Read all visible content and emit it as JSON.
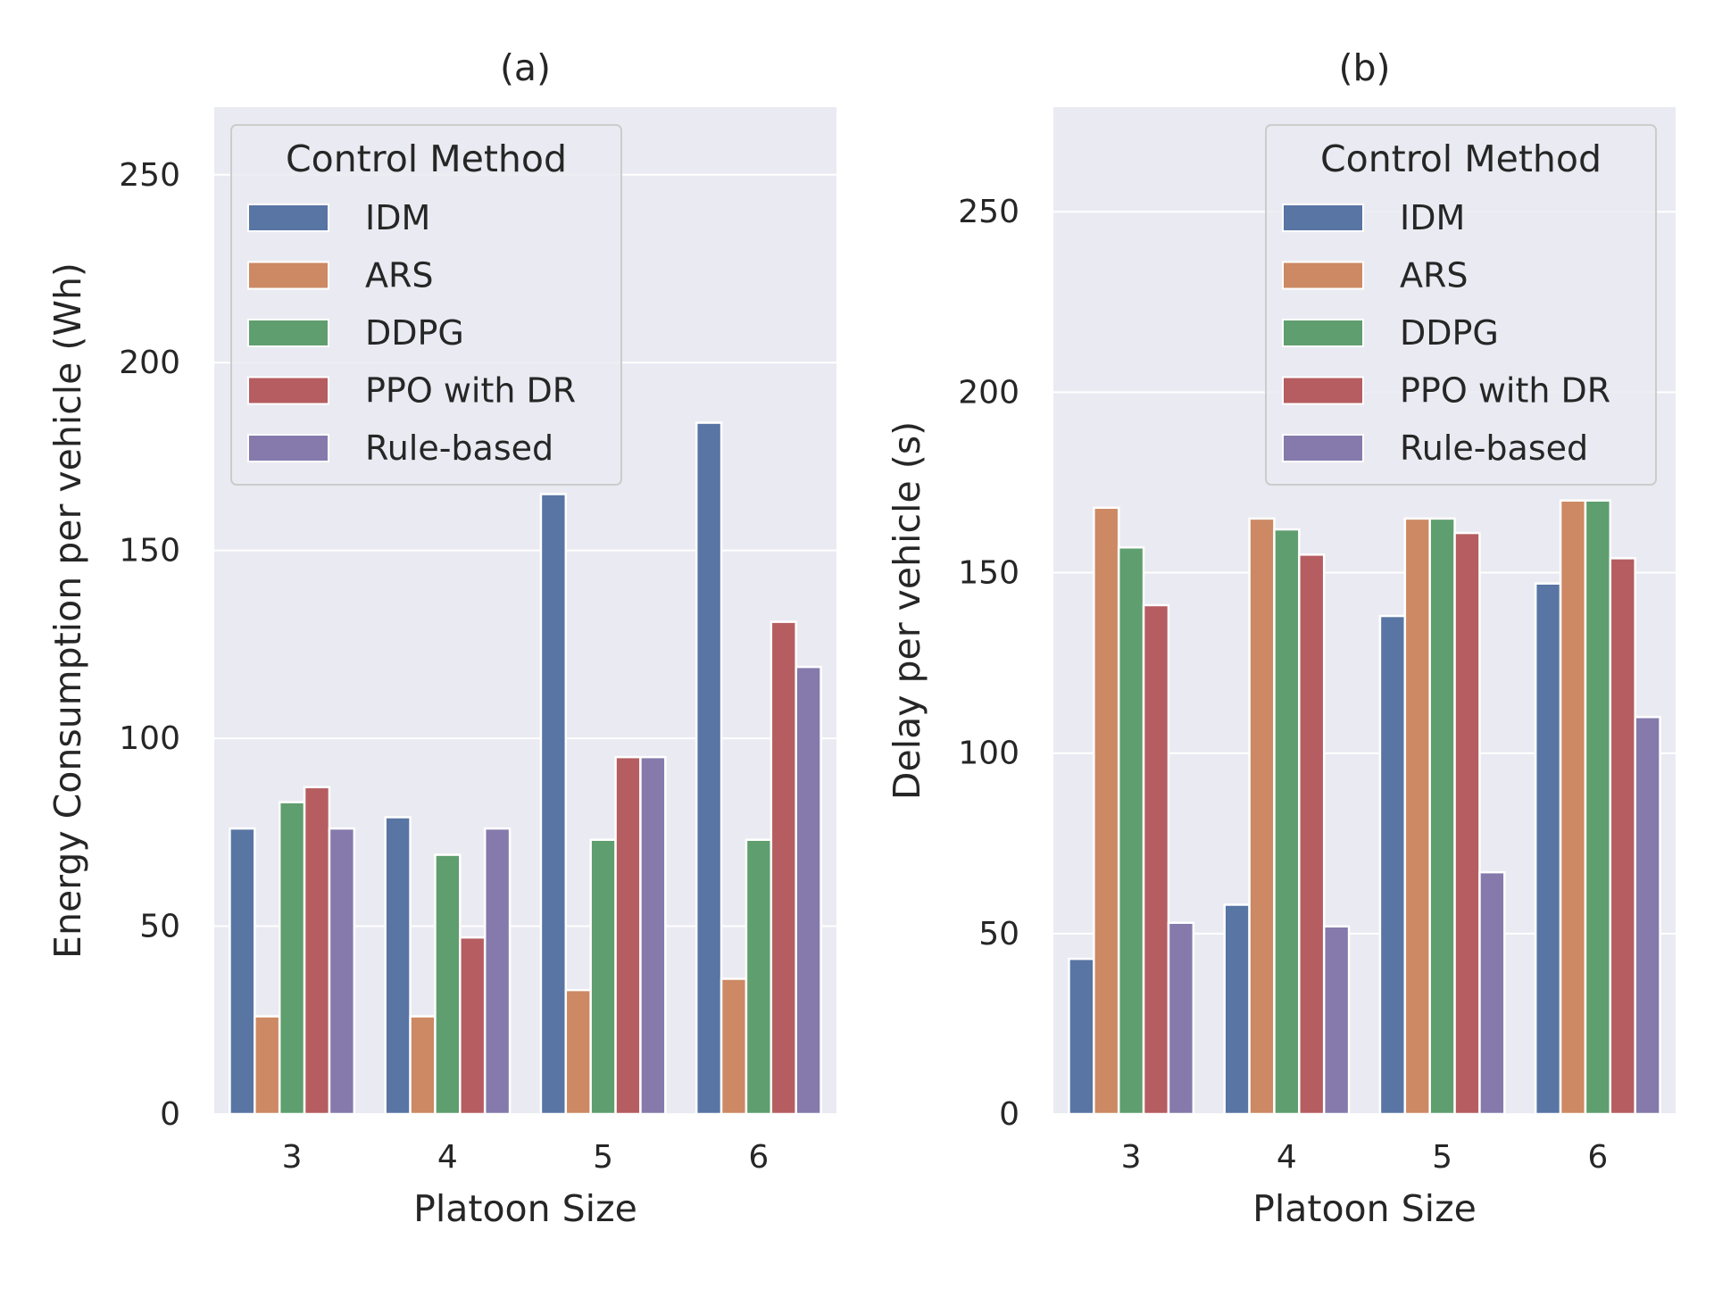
{
  "chart_data": [
    {
      "type": "bar",
      "title": "(a)",
      "xlabel": "Platoon Size",
      "ylabel": "Energy Consumption per vehicle (Wh)",
      "ylim": [
        0,
        268
      ],
      "yticks": [
        "0",
        "50",
        "100",
        "150",
        "200",
        "250"
      ],
      "categories": [
        "3",
        "4",
        "5",
        "6"
      ],
      "legend_title": "Control Method",
      "legend_position": "top-left",
      "series": [
        {
          "name": "IDM",
          "values": [
            76,
            79,
            165,
            184
          ]
        },
        {
          "name": "ARS",
          "values": [
            26,
            26,
            33,
            36
          ]
        },
        {
          "name": "DDPG",
          "values": [
            83,
            69,
            73,
            73
          ]
        },
        {
          "name": "PPO with DR",
          "values": [
            87,
            47,
            95,
            131
          ]
        },
        {
          "name": "Rule-based",
          "values": [
            76,
            76,
            95,
            119
          ]
        }
      ]
    },
    {
      "type": "bar",
      "title": "(b)",
      "xlabel": "Platoon Size",
      "ylabel": "Delay per vehicle (s)",
      "ylim": [
        0,
        279
      ],
      "yticks": [
        "0",
        "50",
        "100",
        "150",
        "200",
        "250"
      ],
      "categories": [
        "3",
        "4",
        "5",
        "6"
      ],
      "legend_title": "Control Method",
      "legend_position": "top-right",
      "series": [
        {
          "name": "IDM",
          "values": [
            43,
            58,
            138,
            147
          ]
        },
        {
          "name": "ARS",
          "values": [
            168,
            165,
            165,
            170
          ]
        },
        {
          "name": "DDPG",
          "values": [
            157,
            162,
            165,
            170
          ]
        },
        {
          "name": "PPO with DR",
          "values": [
            141,
            155,
            161,
            154
          ]
        },
        {
          "name": "Rule-based",
          "values": [
            53,
            52,
            67,
            110
          ]
        }
      ]
    }
  ],
  "colors": {
    "IDM": "#5875a4",
    "ARS": "#cc8963",
    "DDPG": "#5f9e6e",
    "PPO with DR": "#b55d60",
    "Rule-based": "#857aab",
    "background": "#eaeaf2",
    "grid": "#ffffff"
  }
}
